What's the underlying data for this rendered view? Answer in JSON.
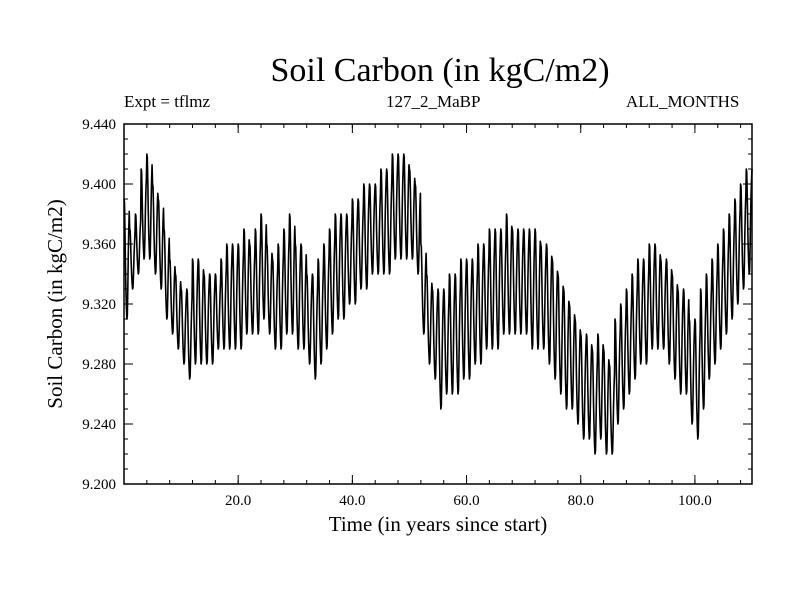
{
  "chart_data": {
    "type": "line",
    "title": "Soil Carbon (in kgC/m2)",
    "subtitle_left": "Expt = tflmz",
    "subtitle_center": "127_2_MaBP",
    "subtitle_right": "ALL_MONTHS",
    "xlabel": "Time (in years since start)",
    "ylabel": "Soil Carbon (in kgC/m2)",
    "xlim": [
      0,
      110
    ],
    "ylim": [
      9.2,
      9.44
    ],
    "xticks": [
      20,
      40,
      60,
      80,
      100
    ],
    "xtick_labels": [
      "20.0",
      "40.0",
      "60.0",
      "80.0",
      "100.0"
    ],
    "yticks": [
      9.2,
      9.24,
      9.28,
      9.32,
      9.36,
      9.4,
      9.44
    ],
    "ytick_labels": [
      "9.200",
      "9.240",
      "9.280",
      "9.320",
      "9.360",
      "9.400",
      "9.440"
    ],
    "grid": false,
    "series": [
      {
        "name": "Soil Carbon",
        "interpolation": "monthly samples within each year, seasonal cycle between annual_max and annual_min",
        "annual_max": [
          9.39,
          9.37,
          9.38,
          9.41,
          9.42,
          9.4,
          9.39,
          9.37,
          9.35,
          9.34,
          9.33,
          9.33,
          9.35,
          9.35,
          9.34,
          9.34,
          9.34,
          9.35,
          9.36,
          9.36,
          9.36,
          9.37,
          9.36,
          9.37,
          9.38,
          9.36,
          9.35,
          9.36,
          9.37,
          9.38,
          9.36,
          9.36,
          9.34,
          9.34,
          9.35,
          9.36,
          9.37,
          9.38,
          9.38,
          9.38,
          9.39,
          9.39,
          9.4,
          9.4,
          9.4,
          9.41,
          9.41,
          9.42,
          9.42,
          9.42,
          9.41,
          9.4,
          9.36,
          9.34,
          9.33,
          9.33,
          9.33,
          9.34,
          9.34,
          9.35,
          9.35,
          9.35,
          9.36,
          9.36,
          9.37,
          9.37,
          9.37,
          9.38,
          9.37,
          9.37,
          9.37,
          9.37,
          9.37,
          9.36,
          9.36,
          9.35,
          9.34,
          9.33,
          9.32,
          9.31,
          9.3,
          9.3,
          9.29,
          9.3,
          9.29,
          9.28,
          9.31,
          9.32,
          9.33,
          9.34,
          9.35,
          9.35,
          9.36,
          9.36,
          9.35,
          9.35,
          9.34,
          9.33,
          9.33,
          9.31,
          9.31,
          9.33,
          9.34,
          9.35,
          9.36,
          9.37,
          9.38,
          9.39,
          9.4,
          9.41
        ],
        "annual_min": [
          9.31,
          9.33,
          9.34,
          9.35,
          9.35,
          9.34,
          9.33,
          9.31,
          9.3,
          9.29,
          9.28,
          9.27,
          9.28,
          9.28,
          9.28,
          9.28,
          9.29,
          9.29,
          9.29,
          9.29,
          9.29,
          9.3,
          9.3,
          9.3,
          9.31,
          9.3,
          9.29,
          9.29,
          9.3,
          9.3,
          9.29,
          9.29,
          9.28,
          9.27,
          9.28,
          9.29,
          9.3,
          9.31,
          9.31,
          9.32,
          9.32,
          9.33,
          9.33,
          9.34,
          9.34,
          9.34,
          9.34,
          9.35,
          9.35,
          9.35,
          9.35,
          9.34,
          9.3,
          9.28,
          9.27,
          9.25,
          9.26,
          9.26,
          9.26,
          9.27,
          9.27,
          9.28,
          9.28,
          9.29,
          9.29,
          9.29,
          9.3,
          9.3,
          9.3,
          9.3,
          9.3,
          9.29,
          9.29,
          9.29,
          9.28,
          9.27,
          9.26,
          9.25,
          9.25,
          9.24,
          9.23,
          9.23,
          9.22,
          9.23,
          9.22,
          9.22,
          9.24,
          9.25,
          9.26,
          9.27,
          9.28,
          9.28,
          9.29,
          9.29,
          9.29,
          9.28,
          9.27,
          9.26,
          9.26,
          9.24,
          9.23,
          9.25,
          9.27,
          9.28,
          9.29,
          9.3,
          9.31,
          9.32,
          9.33,
          9.34
        ]
      }
    ]
  }
}
